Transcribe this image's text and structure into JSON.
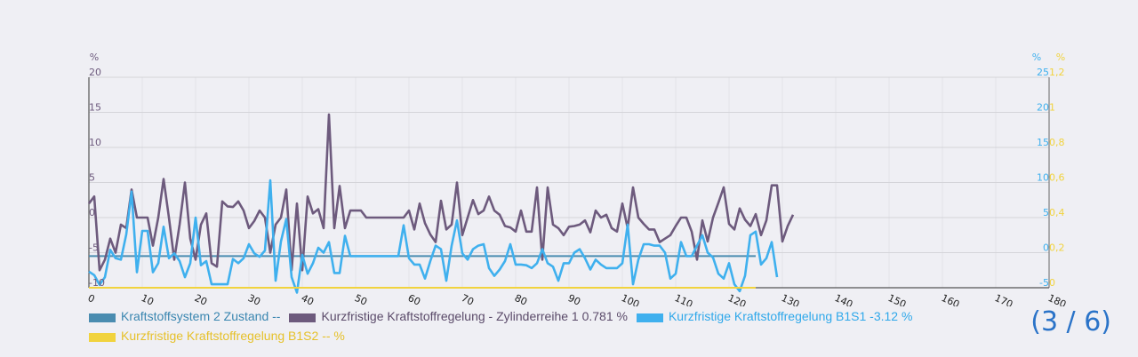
{
  "chart_data": {
    "type": "line",
    "x_ticks": [
      0,
      10,
      20,
      30,
      40,
      50,
      60,
      70,
      80,
      90,
      100,
      110,
      120,
      130,
      140,
      150,
      160,
      170,
      180
    ],
    "xlim": [
      0,
      180
    ],
    "grid": true,
    "axes": [
      {
        "id": "left",
        "side": "left",
        "unit": "%",
        "range": [
          -10,
          20
        ],
        "ticks": [
          -10,
          -5,
          0,
          5,
          10,
          15,
          20
        ],
        "color": "#6d5a7d"
      },
      {
        "id": "right1",
        "side": "right",
        "unit": "%",
        "range": [
          -5,
          25
        ],
        "ticks": [
          -5,
          0,
          5,
          10,
          15,
          20,
          25
        ],
        "color": "#3fb0ee"
      },
      {
        "id": "right2",
        "side": "right",
        "unit": "%",
        "range": [
          0,
          1.2
        ],
        "ticks": [
          "0",
          "0,2",
          "0,4",
          "0,6",
          "0,8",
          "1",
          "1,2"
        ],
        "color": "#f1d33e"
      }
    ],
    "series": [
      {
        "name": "Kraftstoffsystem 2 Zustand --",
        "color": "#4a8cb0",
        "axis": "left",
        "x_start": 0,
        "x_step": 1,
        "values": [
          -5.5,
          -5.5,
          -5.5,
          -5.5,
          -5.5,
          -5.5,
          -5.5,
          -5.5,
          -5.5,
          -5.5,
          -5.5,
          -5.5,
          -5.5,
          -5.5,
          -5.5,
          -5.5,
          -5.5,
          -5.5,
          -5.5,
          -5.5,
          -5.5,
          -5.5,
          -5.5,
          -5.5,
          -5.5,
          -5.5,
          -5.5,
          -5.5,
          -5.5,
          -5.5,
          -5.5,
          -5.5,
          -5.5,
          -5.5,
          -5.5,
          -5.5,
          -5.5,
          -5.5,
          -5.5,
          -5.5,
          -5.5,
          -5.5,
          -5.5,
          -5.5,
          -5.5,
          -5.5,
          -5.5,
          -5.5,
          -5.5,
          -5.5,
          -5.5,
          -5.5,
          -5.5,
          -5.5,
          -5.5,
          -5.5,
          -5.5,
          -5.5,
          -5.5,
          -5.5,
          -5.5,
          -5.5,
          -5.5,
          -5.5,
          -5.5,
          -5.5,
          -5.5,
          -5.5,
          -5.5,
          -5.5,
          -5.5,
          -5.5,
          -5.5,
          -5.5,
          -5.5,
          -5.5,
          -5.5,
          -5.5,
          -5.5,
          -5.5,
          -5.5,
          -5.5,
          -5.5,
          -5.5,
          -5.5,
          -5.5,
          -5.5,
          -5.5,
          -5.5,
          -5.5,
          -5.5,
          -5.5,
          -5.5,
          -5.5,
          -5.5,
          -5.5,
          -5.5,
          -5.5,
          -5.5,
          -5.5,
          -5.5,
          -5.5,
          -5.5,
          -5.5,
          -5.5,
          -5.5,
          -5.5,
          -5.5,
          -5.5,
          -5.5,
          -5.5,
          -5.5,
          -5.5,
          -5.5,
          -5.5,
          -5.5,
          -5.5,
          -5.5,
          -5.5,
          -5.5,
          -5.5,
          -5.5,
          -5.5,
          -5.5,
          -5.5,
          -5.5
        ]
      },
      {
        "name": "Kurzfristige Kraftstoffregelung - Zylinderreihe 1 0.781 %",
        "color": "#6d5a7d",
        "axis": "left",
        "x_start": 0,
        "x_step": 1,
        "values": [
          2,
          3,
          -7.5,
          -6,
          -3,
          -5,
          -1,
          -1.5,
          4,
          0,
          0,
          0,
          -4,
          0,
          5.5,
          0,
          -6,
          -1,
          5,
          -3,
          -6,
          -1,
          0.6,
          -6.5,
          -7,
          2.3,
          1.6,
          1.5,
          2.3,
          1,
          -1.5,
          -0.5,
          1,
          0,
          -5,
          -1,
          0,
          4,
          -7.5,
          2,
          -7.5,
          3,
          0.6,
          1.2,
          -1.5,
          14.7,
          -1.5,
          4.5,
          -1.5,
          1,
          1,
          1,
          0,
          0,
          0,
          0,
          0,
          0,
          0,
          0,
          1,
          -1.7,
          2,
          -0.8,
          -2.4,
          -3.5,
          2.4,
          -1.7,
          -1,
          5,
          -2.5,
          0,
          2.5,
          0.5,
          1,
          3,
          1,
          0.4,
          -1.2,
          -1.4,
          -2,
          1,
          -2,
          -2,
          4.3,
          -6,
          4.3,
          -1,
          -1.5,
          -2.5,
          -1.3,
          -1.2,
          -1,
          -0.4,
          -2.1,
          1,
          0,
          0.4,
          -1.5,
          -2,
          2,
          -1.5,
          4.3,
          0,
          -0.9,
          -1.7,
          -1.7,
          -3.5,
          -3,
          -2.5,
          -1.2,
          0,
          0,
          -2,
          -6,
          -0.4,
          -3.4,
          0,
          2.1,
          4.3,
          -0.9,
          -1.7,
          1.3,
          -0.3,
          -1.2,
          0.5,
          -2.5,
          -0.4,
          4.6,
          4.6,
          -3.4,
          -1.2,
          0.4
        ]
      },
      {
        "name": "Kurzfristige Kraftstoffregelung B1S1 -3.12 %",
        "color": "#3fb0ee",
        "axis": "right1",
        "x_start": 0,
        "x_step": 1,
        "values": [
          -2.7,
          -3.2,
          -4.6,
          -3.5,
          0.4,
          -0.8,
          -1,
          2.6,
          8.7,
          -2.8,
          3.1,
          3.1,
          -2.8,
          -1.5,
          3.7,
          -0.8,
          -0.1,
          -1.2,
          -3.5,
          -1.5,
          5,
          -1.8,
          -1.2,
          -4.5,
          -4.5,
          -4.5,
          -4.5,
          -0.9,
          -1.5,
          -0.8,
          1.2,
          -0.1,
          -0.6,
          0.3,
          10.3,
          -4,
          1.6,
          4.8,
          -3.5,
          -5.7,
          -0.3,
          -3,
          -1.5,
          0.7,
          0,
          1.5,
          -2.9,
          -2.9,
          2.4,
          -0.5,
          -0.5,
          -0.5,
          -0.5,
          -0.5,
          -0.5,
          -0.5,
          -0.5,
          -0.5,
          -0.5,
          3.9,
          -0.8,
          -1.7,
          -1.7,
          -3.7,
          -1.2,
          1,
          0.5,
          -4,
          1,
          4.6,
          -0.1,
          -1,
          0.5,
          1,
          1.2,
          -2.2,
          -3.3,
          -2.4,
          -1.2,
          1.2,
          -1.7,
          -1.7,
          -1.8,
          -2.2,
          -1.5,
          0.5,
          -1.5,
          -2,
          -4,
          -1.5,
          -1.5,
          0,
          0.5,
          -0.8,
          -2.4,
          -1,
          -1.7,
          -2.2,
          -2.2,
          -2.2,
          -1.5,
          4,
          -4.5,
          -1,
          1.2,
          1.2,
          1,
          1,
          0,
          -3.7,
          -3,
          1.5,
          -0.5,
          -0.5,
          1,
          2.5,
          0,
          -0.7,
          -3,
          -3.7,
          -1.5,
          -4.5,
          -5.5,
          -3.3,
          2.5,
          3,
          -1.7,
          -0.8,
          1.5,
          -3.5
        ]
      },
      {
        "name": "Kurzfristige Kraftstoffregelung B1S2 -- %",
        "color": "#f1d33e",
        "axis": "right2",
        "x_start": 0,
        "x_step": 1,
        "values": [
          0,
          0,
          0,
          0,
          0,
          0,
          0,
          0,
          0,
          0,
          0,
          0,
          0,
          0,
          0,
          0,
          0,
          0,
          0,
          0,
          0,
          0,
          0,
          0,
          0,
          0,
          0,
          0,
          0,
          0,
          0,
          0,
          0,
          0,
          0,
          0,
          0,
          0,
          0,
          0,
          0,
          0,
          0,
          0,
          0,
          0,
          0,
          0,
          0,
          0,
          0,
          0,
          0,
          0,
          0,
          0,
          0,
          0,
          0,
          0,
          0,
          0,
          0,
          0,
          0,
          0,
          0,
          0,
          0,
          0,
          0,
          0,
          0,
          0,
          0,
          0,
          0,
          0,
          0,
          0,
          0,
          0,
          0,
          0,
          0,
          0,
          0,
          0,
          0,
          0,
          0,
          0,
          0,
          0,
          0,
          0,
          0,
          0,
          0,
          0,
          0,
          0,
          0,
          0,
          0,
          0,
          0,
          0,
          0,
          0,
          0,
          0,
          0,
          0,
          0,
          0,
          0,
          0,
          0,
          0,
          0,
          0,
          0,
          0,
          0,
          0
        ]
      }
    ]
  },
  "legend": [
    {
      "label": "Kraftstoffsystem 2 Zustand --",
      "color": "#4a8cb0",
      "text_color": "#3a86b0"
    },
    {
      "label": "Kurzfristige Kraftstoffregelung - Zylinderreihe 1 0.781 %",
      "color": "#6d5a7d",
      "text_color": "#5b4b6a"
    },
    {
      "label": "Kurzfristige Kraftstoffregelung B1S1 -3.12 %",
      "color": "#3fb0ee",
      "text_color": "#2fa8ea"
    },
    {
      "label": "Kurzfristige Kraftstoffregelung B1S2 -- %",
      "color": "#f1d33e",
      "text_color": "#e6c12a"
    }
  ],
  "pager": {
    "text": "(3 / 6)"
  }
}
